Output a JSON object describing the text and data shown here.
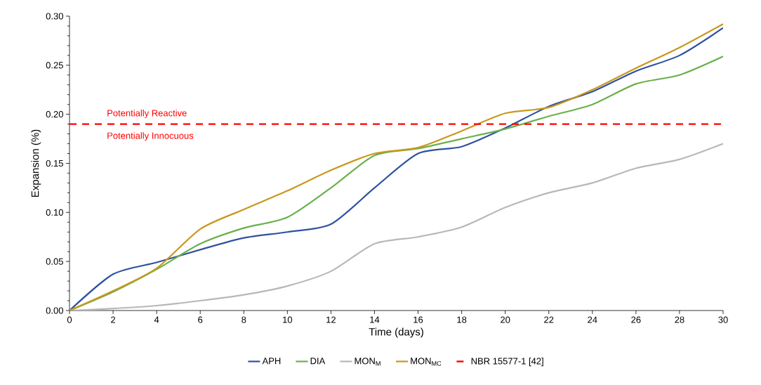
{
  "chart_data": {
    "type": "line",
    "xlabel": "Time (days)",
    "ylabel": "Expansion (%)",
    "x": [
      0,
      2,
      4,
      6,
      8,
      10,
      12,
      14,
      16,
      18,
      20,
      22,
      24,
      26,
      28,
      30
    ],
    "series": [
      {
        "name": "APH",
        "color": "#2f52a0",
        "values": [
          0,
          0.037,
          0.049,
          0.062,
          0.074,
          0.08,
          0.088,
          0.125,
          0.16,
          0.167,
          0.186,
          0.208,
          0.223,
          0.244,
          0.26,
          0.288
        ]
      },
      {
        "name": "DIA",
        "color": "#6ab04c",
        "values": [
          0,
          0.019,
          0.042,
          0.068,
          0.084,
          0.095,
          0.125,
          0.158,
          0.165,
          0.175,
          0.185,
          0.198,
          0.21,
          0.231,
          0.24,
          0.259
        ]
      },
      {
        "name": "MON$_{M}$",
        "color": "#b8b8b8",
        "values": [
          0,
          0.002,
          0.005,
          0.01,
          0.016,
          0.025,
          0.04,
          0.068,
          0.075,
          0.085,
          0.105,
          0.12,
          0.13,
          0.145,
          0.154,
          0.17
        ]
      },
      {
        "name": "MON$_{MC}$",
        "color": "#c9971c",
        "values": [
          0,
          0.02,
          0.043,
          0.083,
          0.103,
          0.122,
          0.143,
          0.16,
          0.166,
          0.183,
          0.201,
          0.207,
          0.225,
          0.247,
          0.268,
          0.292
        ]
      }
    ],
    "ref_lines": [
      {
        "axis": "y",
        "value": 0.19,
        "label": "NBR 15577-1 [42]",
        "color": "#ff0000",
        "line_style": "dashed"
      }
    ],
    "annotations": [
      "Potentially Reactive",
      "Potentially Innocuous"
    ],
    "xlim": [
      0,
      30
    ],
    "ylim": [
      0,
      0.3
    ],
    "xticks": [
      0,
      2,
      4,
      6,
      8,
      10,
      12,
      14,
      16,
      18,
      20,
      22,
      24,
      26,
      28,
      30
    ],
    "yticks": [
      {
        "value": 0,
        "label": "0.00"
      },
      {
        "value": 0.05,
        "label": "0.05"
      },
      {
        "value": 0.1,
        "label": "0.10"
      },
      {
        "value": 0.15,
        "label": "0.15"
      },
      {
        "value": 0.2,
        "label": "0.20"
      },
      {
        "value": 0.25,
        "label": "0.25"
      },
      {
        "value": 0.3,
        "label": "0.30"
      }
    ],
    "grid": false,
    "legend": "bottom",
    "marker": "none",
    "line_style": "solid"
  }
}
